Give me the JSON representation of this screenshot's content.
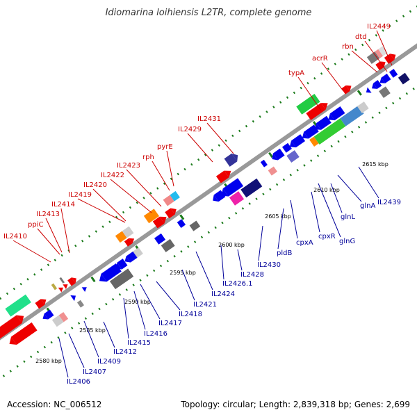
{
  "title": "Idiomarina loihiensis L2TR, complete genome",
  "footer": {
    "accession": "Accession: NC_006512",
    "summary": "Topology: circular; Length: 2,839,318 bp; Genes: 2,699"
  },
  "colors": {
    "upper_label": "#cc0000",
    "lower_label": "#000099",
    "backbone": "#999999",
    "tick": "#1a7a1a"
  },
  "kbp_marks": [
    {
      "label": "2580 kbp"
    },
    {
      "label": "2585 kbp"
    },
    {
      "label": "2590 kbp"
    },
    {
      "label": "2595 kbp"
    },
    {
      "label": "2600 kbp"
    },
    {
      "label": "2605 kbp"
    },
    {
      "label": "2610 kbp"
    },
    {
      "label": "2615 kbp"
    }
  ],
  "upper_labels": [
    {
      "text": "IL2410"
    },
    {
      "text": "ppiC"
    },
    {
      "text": "IL2413"
    },
    {
      "text": "IL2414"
    },
    {
      "text": "IL2419"
    },
    {
      "text": "IL2420"
    },
    {
      "text": "IL2422"
    },
    {
      "text": "IL2423"
    },
    {
      "text": "rph"
    },
    {
      "text": "pyrE"
    },
    {
      "text": "IL2429"
    },
    {
      "text": "IL2431"
    },
    {
      "text": "typA"
    },
    {
      "text": "acrR"
    },
    {
      "text": "rbn"
    },
    {
      "text": "dtd"
    },
    {
      "text": "IL2449"
    }
  ],
  "lower_labels": [
    {
      "text": "IL2406"
    },
    {
      "text": "IL2407"
    },
    {
      "text": "IL2409"
    },
    {
      "text": "IL2412"
    },
    {
      "text": "IL2415"
    },
    {
      "text": "IL2416"
    },
    {
      "text": "IL2417"
    },
    {
      "text": "IL2418"
    },
    {
      "text": "IL2421"
    },
    {
      "text": "IL2424"
    },
    {
      "text": "IL2426.1"
    },
    {
      "text": "IL2428"
    },
    {
      "text": "IL2430"
    },
    {
      "text": "pldB"
    },
    {
      "text": "cpxA"
    },
    {
      "text": "cpxR"
    },
    {
      "text": "glnG"
    },
    {
      "text": "glnL"
    },
    {
      "text": "glnA"
    },
    {
      "text": "IL2439"
    }
  ]
}
